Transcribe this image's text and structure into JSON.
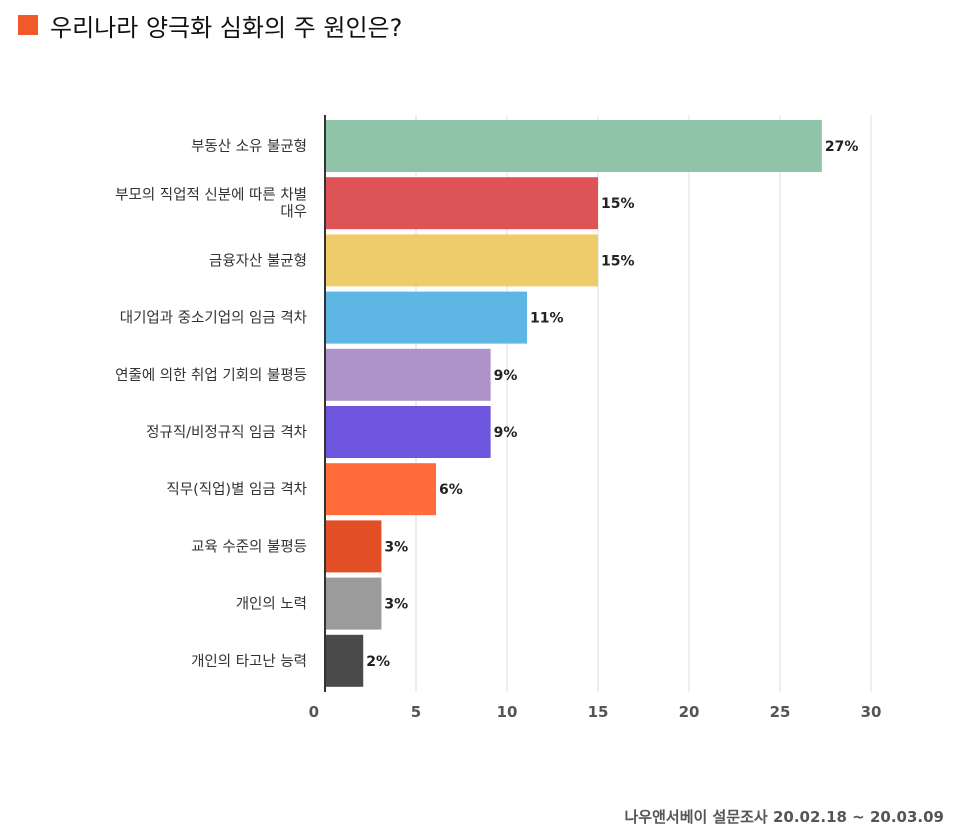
{
  "title": {
    "text": "우리나라 양극화 심화의 주 원인은?",
    "marker_color": "#F05A28"
  },
  "source": "나우앤서베이 설문조사 20.02.18 ~ 20.03.09",
  "chart_data": {
    "type": "bar",
    "orientation": "horizontal",
    "title": "우리나라 양극화 심화의 주 원인은?",
    "categories": [
      "부동산 소유 불균형",
      "부모의 직업적 신분에 따른 차별 대우",
      "금융자산 불균형",
      "대기업과 중소기업의 임금 격차",
      "연줄에 의한 취업 기회의 불평등",
      "정규직/비정규직 임금 격차",
      "직무(직업)별 임금 격차",
      "교육 수준의 불평등",
      "개인의 노력",
      "개인의 타고난 능력"
    ],
    "category_lines": [
      [
        "부동산 소유 불균형"
      ],
      [
        "부모의 직업적 신분에 따른 차별",
        "대우"
      ],
      [
        "금융자산 불균형"
      ],
      [
        "대기업과 중소기업의 임금 격차"
      ],
      [
        "연줄에 의한 취업 기회의 불평등"
      ],
      [
        "정규직/비정규직 임금 격차"
      ],
      [
        "직무(직업)별 임금 격차"
      ],
      [
        "교육 수준의 불평등"
      ],
      [
        "개인의 노력"
      ],
      [
        "개인의 타고난 능력"
      ]
    ],
    "values": [
      27.3,
      15,
      15,
      11.1,
      9.1,
      9.1,
      6.1,
      3.1,
      3.1,
      2.1
    ],
    "data_labels": [
      "27%",
      "15%",
      "15%",
      "11%",
      "9%",
      "9%",
      "6%",
      "3%",
      "3%",
      "2%"
    ],
    "colors": [
      "#8FC4A8",
      "#DD5358",
      "#EFCC6A",
      "#5EB6E4",
      "#AD93C9",
      "#6E55DD",
      "#FF6B3A",
      "#E24E26",
      "#9B9B9B",
      "#4A4A4A"
    ],
    "xticks": [
      "0",
      "5",
      "10",
      "15",
      "20",
      "25",
      "30"
    ],
    "xlim": [
      0,
      30
    ],
    "grid": true,
    "legend": "none"
  }
}
